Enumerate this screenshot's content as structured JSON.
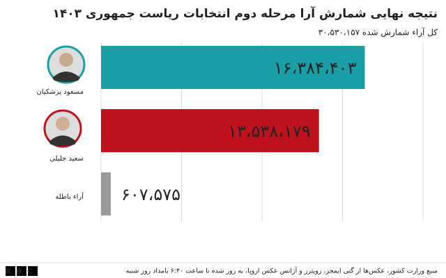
{
  "chart_data": {
    "type": "bar",
    "orientation": "horizontal",
    "title": "نتیجه نهایی شمارش آرا مرحله دوم انتخابات ریاست جمهوری ۱۴۰۳",
    "subtitle": "کل آراء شمارش شده  ۳۰،۵۳۰،۱۵۷",
    "categories": [
      "مسعود پزشکیان",
      "سعید جلیلی",
      "آراء باطله"
    ],
    "values": [
      16384403,
      13538179,
      607575
    ],
    "value_labels": [
      "۱۶،۳۸۴،۴۰۳",
      "۱۳،۵۳۸،۱۷۹",
      "۶۰۷،۵۷۵"
    ],
    "colors": [
      "#1a9ea8",
      "#c0121d",
      "#9a9a9a"
    ],
    "xlim": [
      0,
      20000000
    ],
    "xticks": [
      0,
      5000000,
      10000000,
      15000000,
      20000000
    ],
    "grid": true,
    "source": "منبع وزارت کشور، عکس‌ها از گتی ایمجز، رویترز و آژانس عکس اروپا، به روز شده تا ساعت ۶:۴۰ بامداد روز شنبه",
    "logo": "BBC"
  }
}
